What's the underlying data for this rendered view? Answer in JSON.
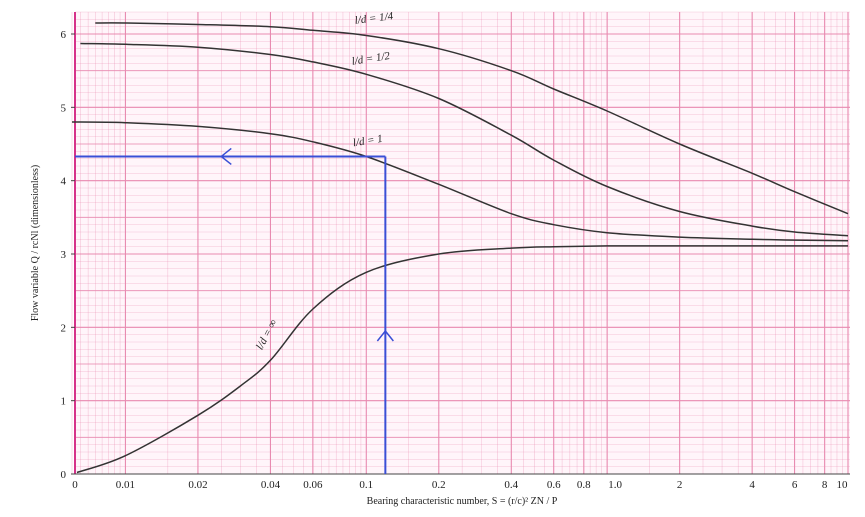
{
  "chart_data": {
    "type": "line",
    "title": "",
    "xlabel": "Bearing characteristic number, S = (r/c)² ZN / P",
    "ylabel": "Flow variable Q / rcNl (dimensionless)",
    "x_scale": "log",
    "x_tick_labels": [
      "0",
      "0.01",
      "0.02",
      "0.04",
      "0.06",
      "0.1",
      "0.2",
      "0.4",
      "0.6",
      "0.8",
      "1.0",
      "2",
      "4",
      "6",
      "8",
      "10"
    ],
    "y_ticks": [
      0,
      1,
      2,
      3,
      4,
      5,
      6
    ],
    "ylim": [
      0,
      6.3
    ],
    "grid": true,
    "grid_color": "#e88ab0",
    "curve_color": "#333333",
    "guide_color": "#3a4fd6",
    "series": [
      {
        "name": "l/d = 1/4",
        "x": [
          0.0075,
          0.01,
          0.02,
          0.04,
          0.06,
          0.1,
          0.2,
          0.4,
          0.6,
          1.0,
          2,
          4,
          6,
          10
        ],
        "y": [
          6.15,
          6.15,
          6.13,
          6.1,
          6.05,
          5.98,
          5.8,
          5.5,
          5.25,
          4.95,
          4.5,
          4.1,
          3.85,
          3.55
        ]
      },
      {
        "name": "l/d = 1/2",
        "x": [
          0.0065,
          0.01,
          0.02,
          0.04,
          0.06,
          0.1,
          0.2,
          0.4,
          0.6,
          1.0,
          2,
          4,
          6,
          10
        ],
        "y": [
          5.87,
          5.86,
          5.82,
          5.72,
          5.62,
          5.45,
          5.12,
          4.62,
          4.28,
          3.92,
          3.58,
          3.38,
          3.3,
          3.25
        ]
      },
      {
        "name": "l/d = 1",
        "x": [
          0.006,
          0.01,
          0.02,
          0.04,
          0.06,
          0.1,
          0.2,
          0.4,
          0.6,
          1.0,
          2,
          4,
          6,
          10
        ],
        "y": [
          4.8,
          4.79,
          4.74,
          4.64,
          4.53,
          4.33,
          3.95,
          3.55,
          3.4,
          3.29,
          3.23,
          3.2,
          3.19,
          3.18
        ]
      },
      {
        "name": "l/d = ∞",
        "x": [
          0.005,
          0.01,
          0.02,
          0.03,
          0.04,
          0.06,
          0.1,
          0.2,
          0.4,
          0.6,
          1.0,
          2,
          4,
          10
        ],
        "y": [
          0.02,
          0.25,
          0.8,
          1.2,
          1.55,
          2.25,
          2.75,
          3.0,
          3.08,
          3.1,
          3.11,
          3.11,
          3.11,
          3.11
        ]
      }
    ],
    "annotation": {
      "x": 0.12,
      "y": 4.33
    }
  }
}
